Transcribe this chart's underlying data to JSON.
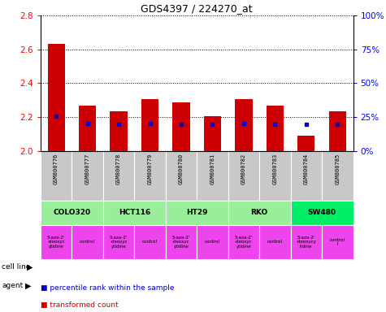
{
  "title": "GDS4397 / 224270_at",
  "samples": [
    "GSM800776",
    "GSM800777",
    "GSM800778",
    "GSM800779",
    "GSM800780",
    "GSM800781",
    "GSM800782",
    "GSM800783",
    "GSM800784",
    "GSM800785"
  ],
  "red_values": [
    2.635,
    2.265,
    2.235,
    2.305,
    2.285,
    2.205,
    2.305,
    2.265,
    2.09,
    2.235
  ],
  "blue_values": [
    2.205,
    2.16,
    2.155,
    2.16,
    2.155,
    2.155,
    2.16,
    2.155,
    2.155,
    2.155
  ],
  "ylim": [
    2.0,
    2.8
  ],
  "yticks": [
    2.0,
    2.2,
    2.4,
    2.6,
    2.8
  ],
  "right_yticks": [
    0,
    25,
    50,
    75,
    100
  ],
  "right_ylabels": [
    "0%",
    "25%",
    "50%",
    "75%",
    "100%"
  ],
  "bar_color": "#CC0000",
  "dot_color": "#0000CC",
  "sample_bg": "#C8C8C8",
  "cell_groups": [
    {
      "name": "COLO320",
      "cols": [
        0,
        1
      ],
      "color": "#99EE99"
    },
    {
      "name": "HCT116",
      "cols": [
        2,
        3
      ],
      "color": "#99EE99"
    },
    {
      "name": "HT29",
      "cols": [
        4,
        5
      ],
      "color": "#99EE99"
    },
    {
      "name": "RKO",
      "cols": [
        6,
        7
      ],
      "color": "#99EE99"
    },
    {
      "name": "SW480",
      "cols": [
        8,
        9
      ],
      "color": "#00EE66"
    }
  ],
  "agent_names": [
    "5-aza-2'\n-deoxyc\nytidine",
    "control",
    "5-aza-2'\n-deoxyc\nytidine",
    "control",
    "5-aza-2'\n-deoxyc\nytidine",
    "control",
    "5-aza-2'\n-deoxyc\nytidine",
    "control",
    "5-aza-2'\n-deoxycy\ntidine",
    "control\nl"
  ],
  "agent_color": "#EE44EE",
  "legend_items": [
    {
      "color": "#CC0000",
      "label": "transformed count"
    },
    {
      "color": "#0000CC",
      "label": "percentile rank within the sample"
    }
  ]
}
